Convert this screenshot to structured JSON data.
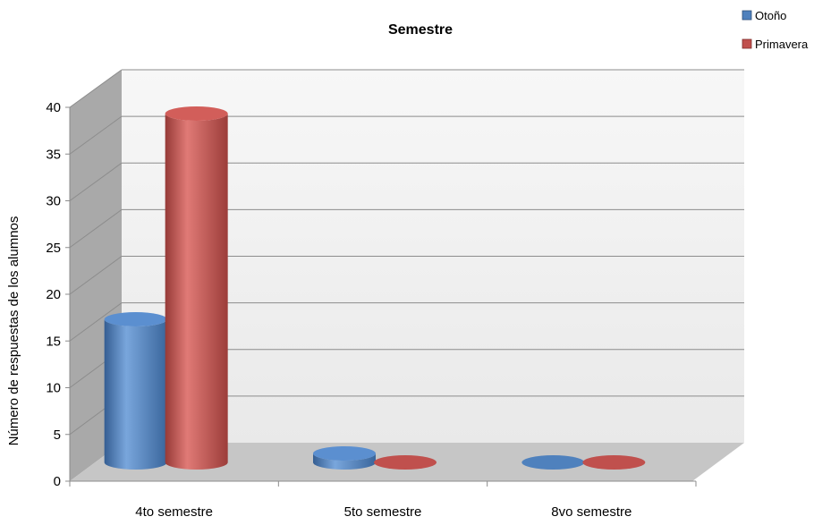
{
  "chart_data": {
    "type": "bar",
    "title": "Semestre",
    "xlabel": "",
    "ylabel": "Número de respuestas de los alumnos",
    "categories": [
      "4to semestre",
      "5to semestre",
      "8vo semestre"
    ],
    "series": [
      {
        "name": "Otoño",
        "values": [
          16,
          1,
          0
        ],
        "color": "#4f81bd"
      },
      {
        "name": "Primavera",
        "values": [
          39,
          0,
          0
        ],
        "color": "#c0504d"
      }
    ],
    "ylim": [
      0,
      40
    ],
    "yticks": [
      0,
      5,
      10,
      15,
      20,
      25,
      30,
      35,
      40
    ],
    "grid": true,
    "legend_position": "top-right",
    "style": "3d-cylinder"
  }
}
